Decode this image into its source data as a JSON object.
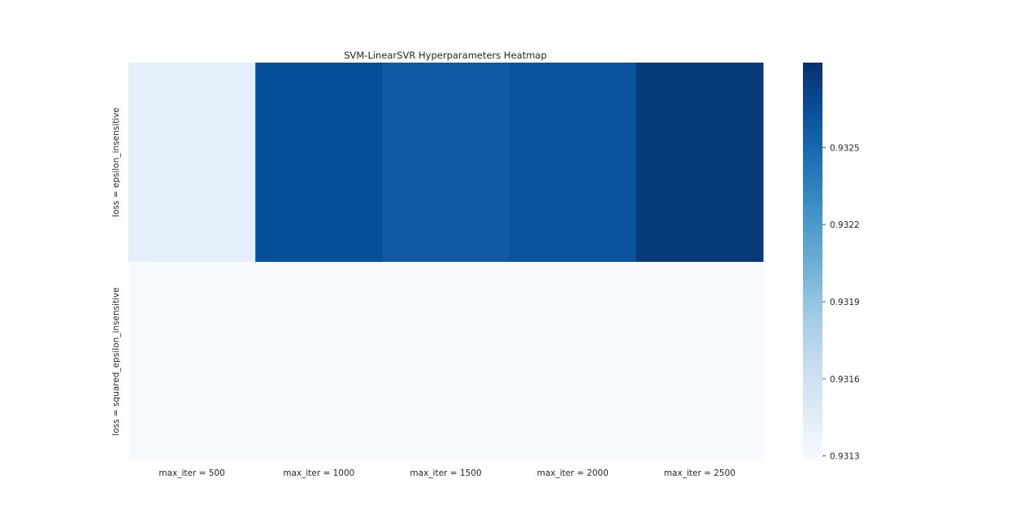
{
  "chart_data": {
    "type": "heatmap",
    "title": "SVM-LinearSVR Hyperparameters Heatmap",
    "xlabel": "",
    "ylabel": "",
    "x_categories": [
      "max_iter = 500",
      "max_iter = 1000",
      "max_iter = 1500",
      "max_iter = 2000",
      "max_iter = 2500"
    ],
    "y_categories": [
      "loss = epsilon_insensitive",
      "loss = squared_epsilon_insensitive"
    ],
    "values": [
      [
        0.93143,
        0.93265,
        0.93258,
        0.93263,
        0.93278
      ],
      [
        0.93128,
        0.93128,
        0.93128,
        0.93128,
        0.93128
      ]
    ],
    "colorscale": "Blues",
    "colorbar": {
      "vmin": 0.93128,
      "vmax": 0.93283,
      "ticks": [
        0.9313,
        0.9316,
        0.9319,
        0.9322,
        0.9325
      ],
      "tick_labels": [
        "0.9313",
        "0.9316",
        "0.9319",
        "0.9322",
        "0.9325"
      ]
    },
    "grid": false
  }
}
